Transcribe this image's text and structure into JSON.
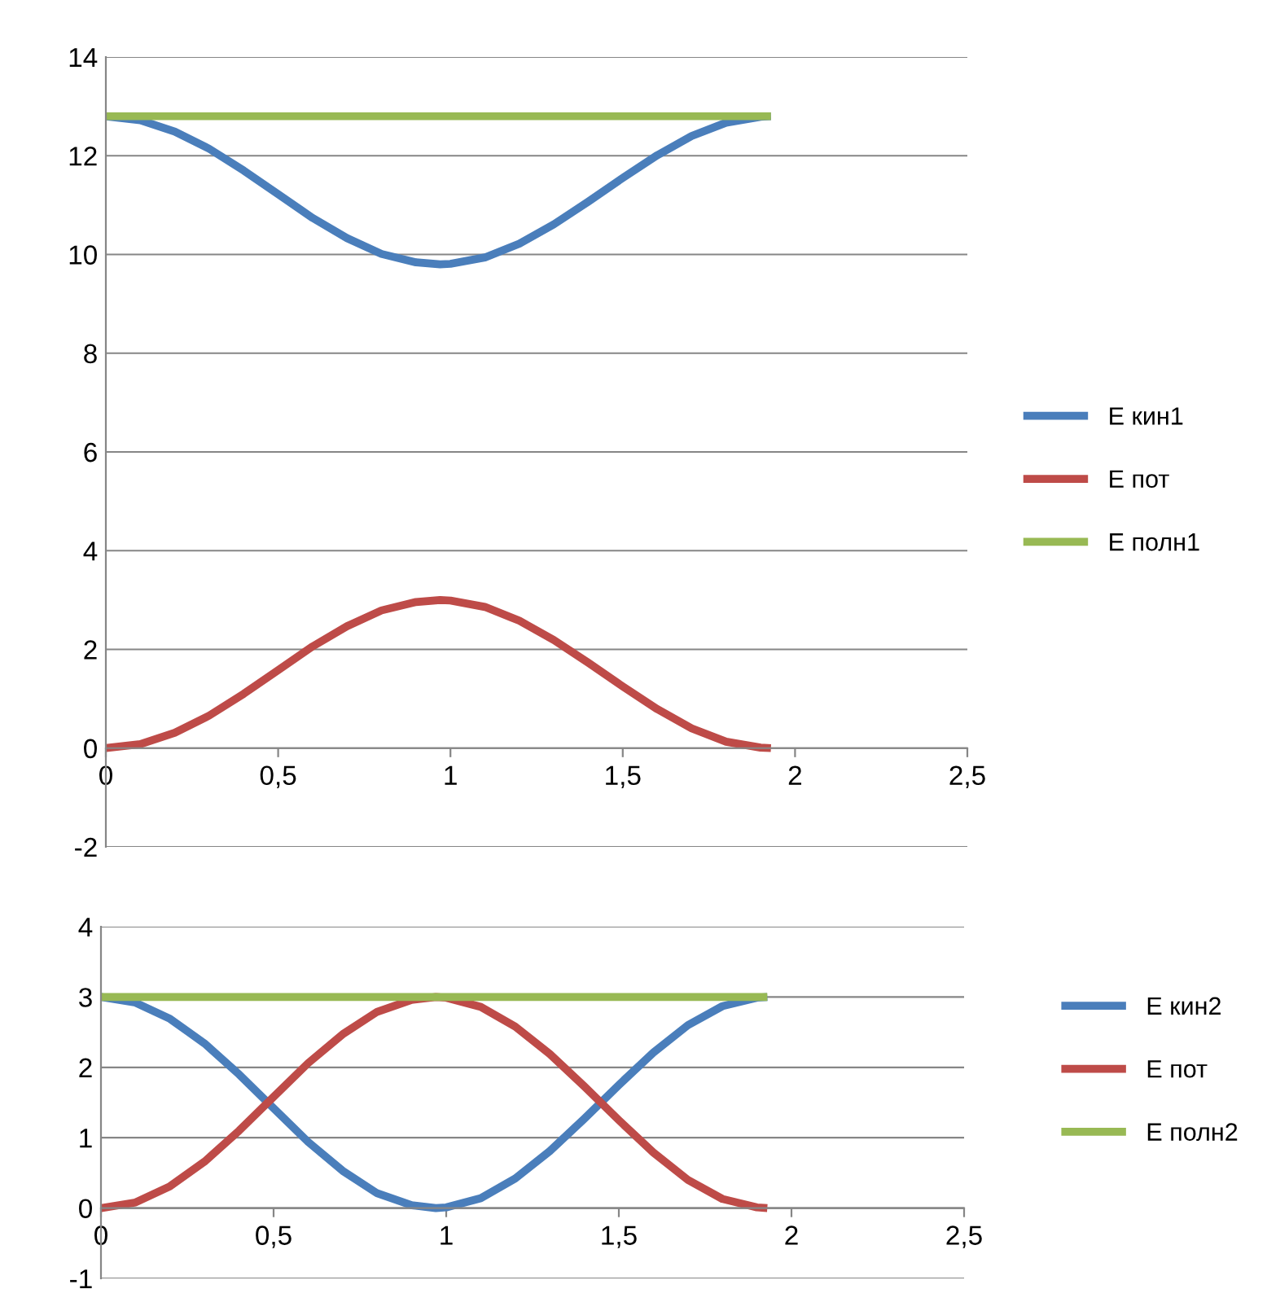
{
  "chart_data": [
    {
      "type": "line",
      "x": [
        0,
        0.1,
        0.2,
        0.3,
        0.4,
        0.5,
        0.6,
        0.7,
        0.8,
        0.9,
        0.97,
        1.0,
        1.1,
        1.2,
        1.3,
        1.4,
        1.5,
        1.6,
        1.7,
        1.8,
        1.9,
        1.93
      ],
      "series": [
        {
          "name": "E кин1",
          "color": "#4a7ebb",
          "values": [
            12.8,
            12.72,
            12.49,
            12.14,
            11.7,
            11.22,
            10.74,
            10.33,
            10.01,
            9.84,
            9.8,
            9.81,
            9.94,
            10.22,
            10.61,
            11.07,
            11.55,
            12.01,
            12.4,
            12.67,
            12.79,
            12.8
          ]
        },
        {
          "name": "E пот",
          "color": "#be4b48",
          "values": [
            0,
            0.08,
            0.31,
            0.66,
            1.1,
            1.58,
            2.06,
            2.47,
            2.79,
            2.96,
            3.0,
            2.99,
            2.86,
            2.58,
            2.19,
            1.73,
            1.25,
            0.79,
            0.4,
            0.13,
            0.01,
            0
          ]
        },
        {
          "name": "E полн1",
          "color": "#98b954",
          "values": [
            12.8,
            12.8,
            12.8,
            12.8,
            12.8,
            12.8,
            12.8,
            12.8,
            12.8,
            12.8,
            12.8,
            12.8,
            12.8,
            12.8,
            12.8,
            12.8,
            12.8,
            12.8,
            12.8,
            12.8,
            12.8,
            12.8
          ]
        }
      ],
      "xlim": [
        0,
        2.5
      ],
      "xticks": [
        0,
        {
          "value": 0.5,
          "label": "0,5"
        },
        1,
        {
          "value": 1.5,
          "label": "1,5"
        },
        2,
        {
          "value": 2.5,
          "label": "2,5"
        }
      ],
      "ylim": [
        -2,
        14
      ],
      "yticks": [
        -2,
        0,
        2,
        4,
        6,
        8,
        10,
        12,
        14
      ],
      "grid": "y",
      "legend": "right",
      "marker": "none",
      "line_style": "solid"
    },
    {
      "type": "line",
      "x": [
        0,
        0.1,
        0.2,
        0.3,
        0.4,
        0.5,
        0.6,
        0.7,
        0.8,
        0.9,
        0.97,
        1.0,
        1.1,
        1.2,
        1.3,
        1.4,
        1.5,
        1.6,
        1.7,
        1.8,
        1.9,
        1.93
      ],
      "series": [
        {
          "name": "E кин2",
          "color": "#4a7ebb",
          "values": [
            3.0,
            2.92,
            2.69,
            2.34,
            1.9,
            1.42,
            0.94,
            0.53,
            0.21,
            0.04,
            0.0,
            0.01,
            0.14,
            0.42,
            0.81,
            1.27,
            1.75,
            2.21,
            2.6,
            2.87,
            2.99,
            3.0
          ]
        },
        {
          "name": "E пот",
          "color": "#be4b48",
          "values": [
            0,
            0.08,
            0.31,
            0.66,
            1.1,
            1.58,
            2.06,
            2.47,
            2.79,
            2.96,
            3.0,
            2.99,
            2.86,
            2.58,
            2.19,
            1.73,
            1.25,
            0.79,
            0.4,
            0.13,
            0.01,
            0
          ]
        },
        {
          "name": "E полн2",
          "color": "#98b954",
          "values": [
            3,
            3,
            3,
            3,
            3,
            3,
            3,
            3,
            3,
            3,
            3,
            3,
            3,
            3,
            3,
            3,
            3,
            3,
            3,
            3,
            3,
            3
          ]
        }
      ],
      "xlim": [
        0,
        2.5
      ],
      "xticks": [
        0,
        {
          "value": 0.5,
          "label": "0,5"
        },
        1,
        {
          "value": 1.5,
          "label": "1,5"
        },
        2,
        {
          "value": 2.5,
          "label": "2,5"
        }
      ],
      "ylim": [
        -1,
        4
      ],
      "yticks": [
        -1,
        0,
        1,
        2,
        3,
        4
      ],
      "grid": "y",
      "legend": "right",
      "marker": "none",
      "line_style": "solid"
    }
  ]
}
